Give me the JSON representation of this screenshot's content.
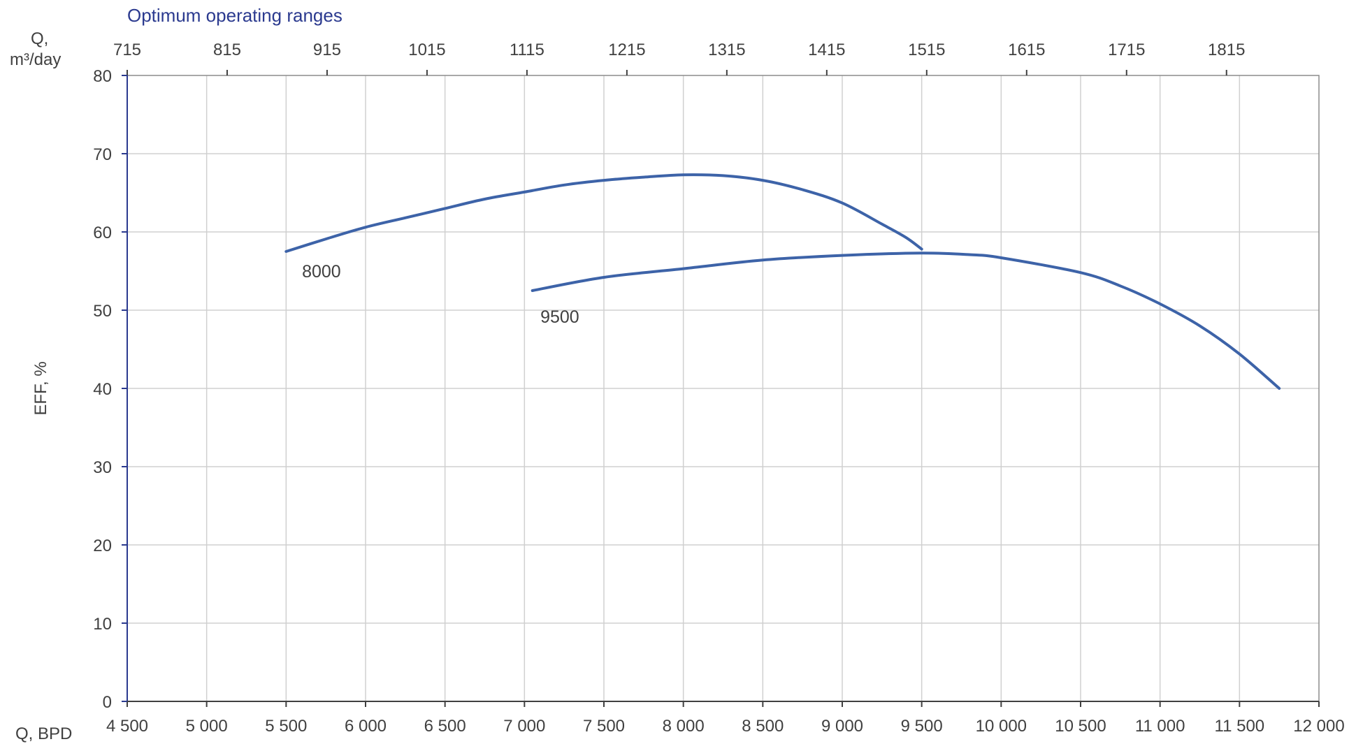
{
  "chart_data": {
    "type": "line",
    "title": "Optimum operating ranges",
    "ylabel": "EFF, %",
    "xlabel": "Q, BPD",
    "x2label_line1": "Q,",
    "x2label_line2": "m³/day",
    "xlim": [
      4500,
      12000
    ],
    "ylim": [
      0,
      80
    ],
    "x_ticks": [
      "4 500",
      "5 000",
      "5 500",
      "6 000",
      "6 500",
      "7 000",
      "7 500",
      "8 000",
      "8 500",
      "9 000",
      "9 500",
      "10 000",
      "10 500",
      "11 000",
      "11 500",
      "12 000"
    ],
    "x_tick_values": [
      4500,
      5000,
      5500,
      6000,
      6500,
      7000,
      7500,
      8000,
      8500,
      9000,
      9500,
      10000,
      10500,
      11000,
      11500,
      12000
    ],
    "y_ticks": [
      "0",
      "10",
      "20",
      "30",
      "40",
      "50",
      "60",
      "70",
      "80"
    ],
    "y_tick_values": [
      0,
      10,
      20,
      30,
      40,
      50,
      60,
      70,
      80
    ],
    "x2_ticks": [
      "715",
      "815",
      "915",
      "1015",
      "1115",
      "1215",
      "1315",
      "1415",
      "1515",
      "1615",
      "1715",
      "1815"
    ],
    "x2_tick_values": [
      715,
      815,
      915,
      1015,
      1115,
      1215,
      1315,
      1415,
      1515,
      1615,
      1715,
      1815
    ],
    "x2lim": [
      715,
      1907.5
    ],
    "grid": true,
    "series": [
      {
        "name": "8000",
        "color": "#3d63a8",
        "x": [
          5500,
          5750,
          6000,
          6250,
          6500,
          6750,
          7000,
          7250,
          7500,
          7750,
          8000,
          8250,
          8500,
          8750,
          9000,
          9250,
          9400,
          9500
        ],
        "y": [
          57.5,
          59.1,
          60.6,
          61.8,
          63.0,
          64.2,
          65.1,
          66.0,
          66.6,
          67.0,
          67.3,
          67.2,
          66.6,
          65.4,
          63.7,
          61.0,
          59.3,
          57.8
        ]
      },
      {
        "name": "9500",
        "color": "#3d63a8",
        "x": [
          7050,
          7500,
          8000,
          8500,
          9000,
          9500,
          9800,
          10000,
          10500,
          10750,
          11000,
          11250,
          11500,
          11750
        ],
        "y": [
          52.5,
          54.2,
          55.3,
          56.4,
          57.0,
          57.3,
          57.1,
          56.7,
          54.8,
          53.1,
          50.8,
          48.0,
          44.4,
          40.0
        ]
      }
    ],
    "series_label_positions": [
      {
        "name": "8000",
        "x": 5600,
        "y": 54.2
      },
      {
        "name": "9500",
        "x": 7100,
        "y": 48.4
      }
    ]
  }
}
